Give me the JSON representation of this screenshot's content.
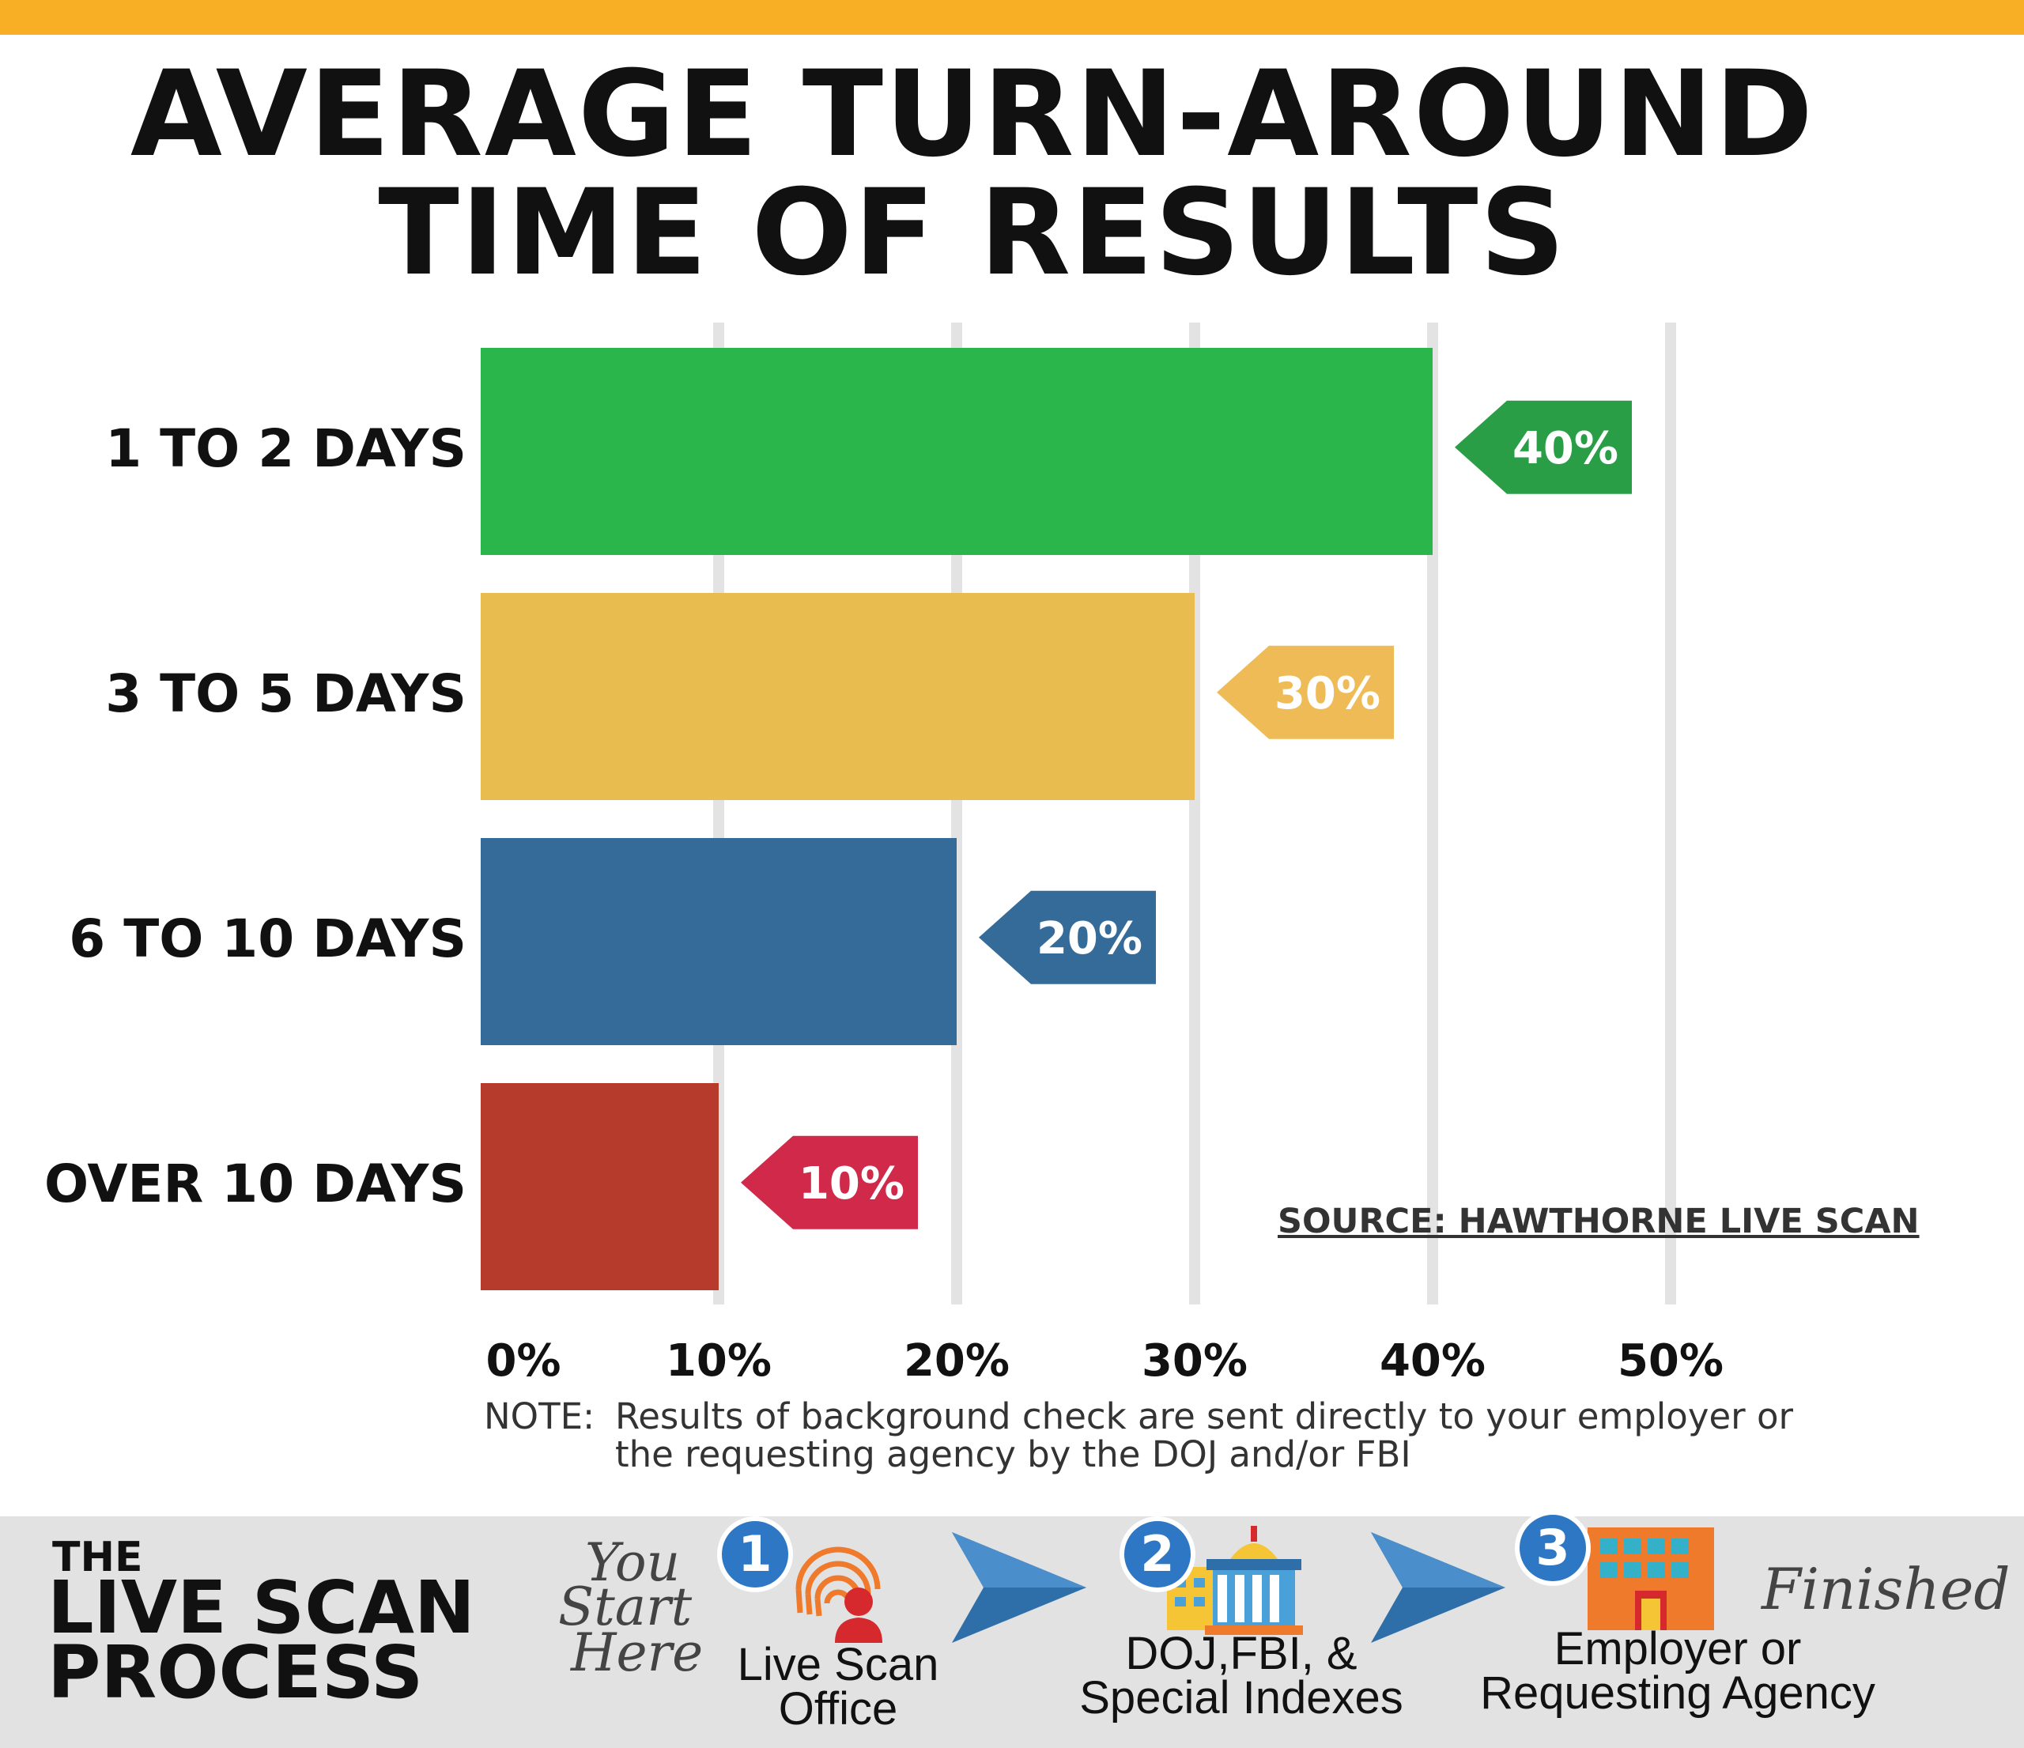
{
  "title": {
    "line1": "AVERAGE TURN-AROUND",
    "line2": "TIME OF RESULTS"
  },
  "chart_data": {
    "type": "bar",
    "orientation": "horizontal",
    "categories": [
      "1 TO 2 DAYS",
      "3 TO 5 DAYS",
      "6 TO 10 DAYS",
      "OVER 10 DAYS"
    ],
    "values": [
      40,
      30,
      20,
      10
    ],
    "data_labels": [
      "40%",
      "30%",
      "20%",
      "10%"
    ],
    "colors": [
      "#2bb64b",
      "#e9bc4f",
      "#346b98",
      "#b73b2c"
    ],
    "label_tag_colors": [
      "#2a9e46",
      "#efbb57",
      "#356b98",
      "#d0294a"
    ],
    "xlim": [
      0,
      50
    ],
    "xticks": [
      0,
      10,
      20,
      30,
      40,
      50
    ],
    "xtick_labels": [
      "0%",
      "10%",
      "20%",
      "30%",
      "40%",
      "50%"
    ],
    "grid": true,
    "source": "SOURCE: HAWTHORNE LIVE SCAN"
  },
  "note": {
    "label": "NOTE:",
    "text": "Results of background check are sent directly to your employer or the requesting agency by the DOJ and/or FBI"
  },
  "footer": {
    "heading_small": "THE",
    "heading_line1": "LIVE SCAN",
    "heading_line2": "PROCESS",
    "start_word1": "You",
    "start_word2": "Start",
    "start_word3": "Here",
    "finished": "Finished",
    "steps": [
      {
        "number": "1",
        "line1": "Live Scan",
        "line2": "Office",
        "icon": "fingerprint-icon"
      },
      {
        "number": "2",
        "line1": "DOJ,FBI, &",
        "line2": "Special Indexes",
        "icon": "government-building-icon"
      },
      {
        "number": "3",
        "line1": "Employer or",
        "line2": "Requesting Agency",
        "icon": "office-building-icon"
      }
    ],
    "colors": {
      "badge": "#2e77c4",
      "arrow": "#2f6fa9",
      "orange": "#f07a2c"
    }
  }
}
